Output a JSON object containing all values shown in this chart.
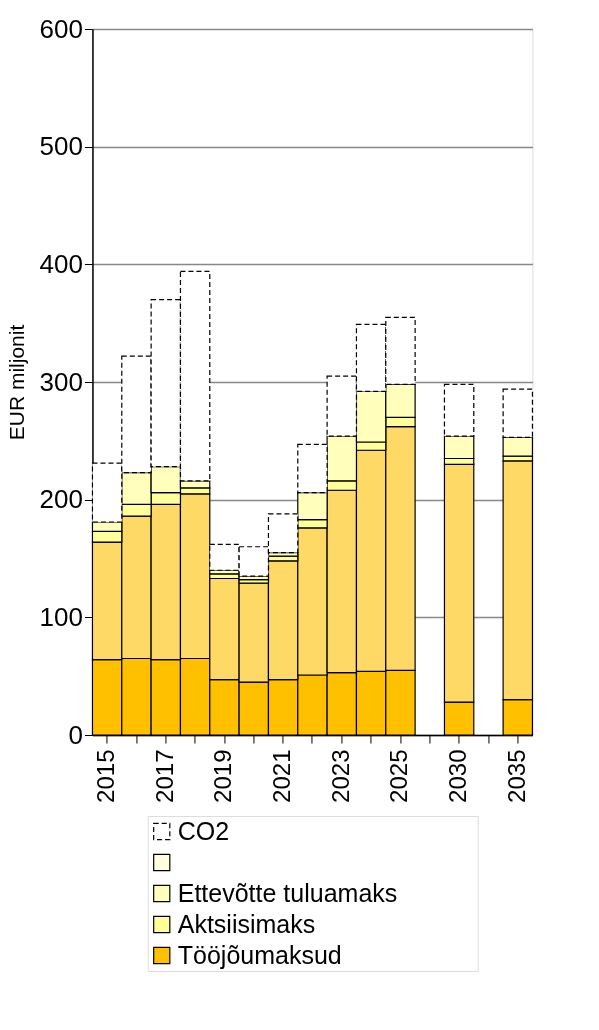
{
  "chart_data": {
    "type": "bar",
    "stacked": true,
    "ylabel": "EUR miljonit",
    "categories": [
      "2015",
      null,
      "2017",
      null,
      "2019",
      null,
      "2021",
      null,
      "2023",
      null,
      "2025",
      null,
      "2030",
      null,
      "2035"
    ],
    "series": [
      {
        "name": "Tööjõumaksud",
        "color": "#ffc000",
        "values": [
          64,
          65,
          64,
          65,
          47,
          45,
          47,
          51,
          53,
          54,
          55,
          null,
          28,
          null,
          30
        ]
      },
      {
        "color": "#ffd966",
        "values": [
          100,
          121,
          132,
          140,
          86,
          84,
          101,
          125,
          155,
          188,
          207,
          null,
          202,
          null,
          203
        ]
      },
      {
        "name": "Aktsiisimaks",
        "color": "#ffff99",
        "values": [
          9,
          10,
          10,
          5,
          4,
          3,
          4,
          7,
          8,
          7,
          8,
          null,
          5,
          null,
          4
        ]
      },
      {
        "name": "Ettevõtte tuluamaks",
        "color": "#ffffbb",
        "values": [
          8,
          27,
          22,
          6,
          3,
          3,
          3,
          23,
          38,
          43,
          28,
          null,
          19,
          null,
          16
        ]
      },
      {
        "color": "#ffffe0",
        "values": [
          null,
          null,
          null,
          null,
          null,
          null,
          null,
          null,
          null,
          null,
          null,
          null,
          null,
          null,
          null
        ]
      },
      {
        "name": "CO2",
        "color": "#ffffff",
        "line_style": "dashed",
        "values": [
          50,
          99,
          142,
          178,
          22,
          25,
          33,
          41,
          51,
          57,
          57,
          null,
          44,
          null,
          41
        ]
      }
    ],
    "ylim": [
      0,
      600
    ],
    "yticks": [
      0,
      100,
      200,
      300,
      400,
      500,
      600
    ],
    "grid": "y",
    "legend": "bottom"
  }
}
